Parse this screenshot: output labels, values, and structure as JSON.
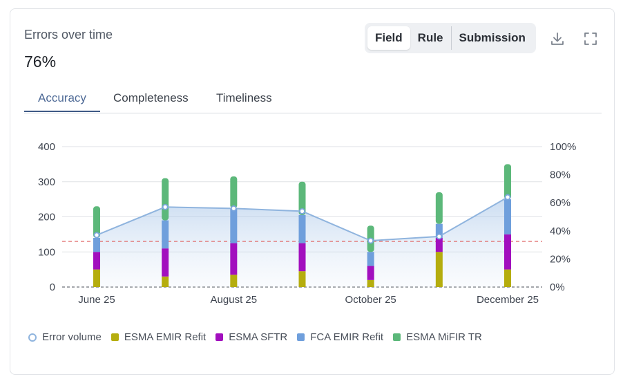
{
  "header": {
    "title": "Errors over time",
    "value": "76%"
  },
  "view_toggle": {
    "options": [
      "Field",
      "Rule",
      "Submission"
    ],
    "selected": "Field"
  },
  "icons": {
    "download": "download-icon",
    "expand": "fullscreen-icon"
  },
  "tabs": [
    {
      "label": "Accuracy",
      "active": true
    },
    {
      "label": "Completeness",
      "active": false
    },
    {
      "label": "Timeliness",
      "active": false
    }
  ],
  "chart_data": {
    "type": "bar",
    "stacked": true,
    "x_ticks": [
      "June 25",
      "August 25",
      "October 25",
      "December 25"
    ],
    "categories": [
      "Jun 25",
      "Jul 25",
      "Aug 25",
      "Sep 25",
      "Oct 25",
      "Nov 25",
      "Dec 25"
    ],
    "series": [
      {
        "name": "ESMA EMIR Refit",
        "color": "#b5ad0e",
        "values": [
          50,
          30,
          35,
          45,
          20,
          100,
          50
        ]
      },
      {
        "name": "ESMA SFTR",
        "color": "#a20fbe",
        "values": [
          50,
          80,
          90,
          80,
          40,
          40,
          100
        ]
      },
      {
        "name": "FCA EMIR Refit",
        "color": "#6f9fdc",
        "values": [
          40,
          80,
          100,
          80,
          40,
          40,
          100
        ]
      },
      {
        "name": "ESMA MiFIR TR",
        "color": "#5cb87a",
        "values": [
          90,
          120,
          90,
          95,
          75,
          90,
          100
        ]
      }
    ],
    "line": {
      "name": "Error volume",
      "axis": "right",
      "color": "#8fb4de",
      "values": [
        37,
        57,
        56,
        54,
        33,
        36,
        64
      ]
    },
    "threshold": {
      "value": 130,
      "axis": "left",
      "color": "#e06666"
    },
    "y_left": {
      "min": 0,
      "max": 400,
      "ticks": [
        0,
        100,
        200,
        300,
        400
      ]
    },
    "y_right": {
      "min": 0,
      "max": 100,
      "ticks": [
        "0%",
        "20%",
        "40%",
        "60%",
        "80%",
        "100%"
      ]
    },
    "legend": [
      "Error volume",
      "ESMA EMIR Refit",
      "ESMA SFTR",
      "FCA EMIR Refit",
      "ESMA MiFIR TR"
    ],
    "legend_position": "bottom-left"
  }
}
